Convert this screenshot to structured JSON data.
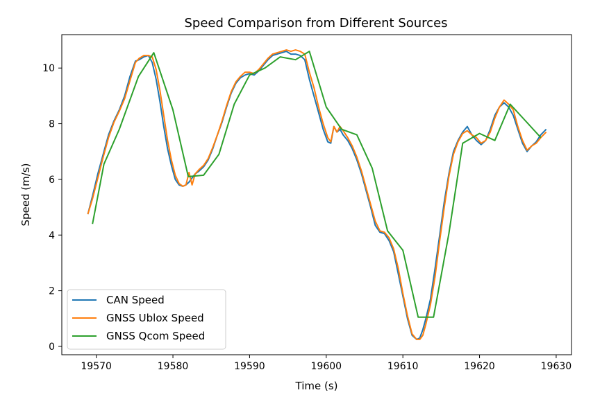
{
  "chart_data": {
    "type": "line",
    "title": "Speed Comparison from Different Sources",
    "xlabel": "Time (s)",
    "ylabel": "Speed (m/s)",
    "xlim": [
      19565.5,
      19632
    ],
    "ylim": [
      -0.3,
      11.2
    ],
    "x_ticks": [
      19570,
      19580,
      19590,
      19600,
      19610,
      19620,
      19630
    ],
    "y_ticks": [
      0,
      2,
      4,
      6,
      8,
      10
    ],
    "grid": false,
    "legend_position": "lower-left",
    "series": [
      {
        "name": "CAN Speed",
        "color": "#1f77b4",
        "x": [
          19568.9,
          19569.5,
          19570.2,
          19570.9,
          19571.6,
          19572.3,
          19573.0,
          19573.7,
          19574.4,
          19575.1,
          19575.6,
          19576.2,
          19576.8,
          19577.3,
          19577.8,
          19578.3,
          19578.8,
          19579.3,
          19579.8,
          19580.3,
          19580.8,
          19581.3,
          19581.7,
          19582.1,
          19582.5,
          19582.9,
          19583.4,
          19584.0,
          19584.6,
          19585.2,
          19585.8,
          19586.4,
          19587.0,
          19587.6,
          19588.2,
          19588.8,
          19589.4,
          19590.0,
          19590.6,
          19591.2,
          19591.8,
          19592.4,
          19593.0,
          19593.6,
          19594.2,
          19594.8,
          19595.4,
          19596.0,
          19596.6,
          19597.2,
          19597.8,
          19598.4,
          19599.0,
          19599.6,
          19600.2,
          19600.6,
          19601.0,
          19601.4,
          19601.8,
          19602.2,
          19602.8,
          19603.4,
          19604.0,
          19604.6,
          19605.2,
          19605.8,
          19606.4,
          19607.0,
          19607.6,
          19608.2,
          19608.8,
          19609.4,
          19610.0,
          19610.6,
          19611.2,
          19611.8,
          19612.2,
          19612.6,
          19613.0,
          19613.6,
          19614.2,
          19614.8,
          19615.4,
          19616.0,
          19616.6,
          19617.2,
          19617.8,
          19618.4,
          19619.0,
          19619.6,
          19620.2,
          19620.8,
          19621.4,
          19622.0,
          19622.6,
          19623.2,
          19623.8,
          19624.4,
          19625.0,
          19625.6,
          19626.2,
          19626.8,
          19627.4,
          19628.0,
          19628.7
        ],
        "y": [
          4.75,
          5.4,
          6.2,
          6.9,
          7.6,
          8.1,
          8.5,
          9.0,
          9.7,
          10.25,
          10.3,
          10.4,
          10.45,
          10.2,
          9.6,
          8.8,
          7.9,
          7.1,
          6.5,
          6.0,
          5.8,
          5.75,
          5.8,
          5.9,
          6.05,
          6.2,
          6.3,
          6.45,
          6.7,
          7.1,
          7.6,
          8.05,
          8.6,
          9.1,
          9.45,
          9.65,
          9.75,
          9.8,
          9.75,
          9.9,
          10.1,
          10.3,
          10.45,
          10.5,
          10.55,
          10.6,
          10.5,
          10.5,
          10.45,
          10.3,
          9.6,
          9.0,
          8.4,
          7.8,
          7.35,
          7.3,
          7.9,
          7.7,
          7.8,
          7.6,
          7.4,
          7.1,
          6.7,
          6.2,
          5.6,
          5.0,
          4.35,
          4.1,
          4.05,
          3.8,
          3.4,
          2.6,
          1.8,
          1.0,
          0.4,
          0.25,
          0.3,
          0.6,
          1.0,
          1.7,
          2.8,
          4.0,
          5.2,
          6.2,
          7.0,
          7.4,
          7.7,
          7.9,
          7.6,
          7.4,
          7.25,
          7.4,
          7.8,
          8.3,
          8.6,
          8.75,
          8.6,
          8.3,
          7.8,
          7.3,
          7.0,
          7.2,
          7.35,
          7.6,
          7.8
        ]
      },
      {
        "name": "GNSS Ublox Speed",
        "color": "#ff7f0e",
        "x": [
          19568.9,
          19569.5,
          19570.2,
          19570.9,
          19571.6,
          19572.3,
          19573.0,
          19573.7,
          19574.4,
          19575.1,
          19575.6,
          19576.2,
          19576.8,
          19577.3,
          19577.8,
          19578.3,
          19578.8,
          19579.3,
          19579.8,
          19580.3,
          19580.8,
          19581.3,
          19581.7,
          19582.1,
          19582.5,
          19582.9,
          19583.4,
          19584.0,
          19584.6,
          19585.2,
          19585.8,
          19586.4,
          19587.0,
          19587.6,
          19588.2,
          19588.8,
          19589.4,
          19590.0,
          19590.6,
          19591.2,
          19591.8,
          19592.4,
          19593.0,
          19593.6,
          19594.2,
          19594.8,
          19595.4,
          19596.0,
          19596.6,
          19597.2,
          19597.8,
          19598.4,
          19599.0,
          19599.6,
          19600.2,
          19600.6,
          19601.0,
          19601.4,
          19601.8,
          19602.2,
          19602.8,
          19603.4,
          19604.0,
          19604.6,
          19605.2,
          19605.8,
          19606.4,
          19607.0,
          19607.6,
          19608.2,
          19608.8,
          19609.4,
          19610.0,
          19610.6,
          19611.2,
          19611.8,
          19612.2,
          19612.6,
          19613.0,
          19613.6,
          19614.2,
          19614.8,
          19615.4,
          19616.0,
          19616.6,
          19617.2,
          19617.8,
          19618.4,
          19619.0,
          19619.6,
          19620.2,
          19620.8,
          19621.4,
          19622.0,
          19622.6,
          19623.2,
          19623.8,
          19624.4,
          19625.0,
          19625.6,
          19626.2,
          19626.8,
          19627.4,
          19628.0,
          19628.7
        ],
        "y": [
          4.75,
          5.3,
          6.05,
          6.8,
          7.5,
          8.05,
          8.45,
          8.9,
          9.55,
          10.2,
          10.35,
          10.45,
          10.45,
          10.4,
          9.95,
          9.2,
          8.3,
          7.4,
          6.7,
          6.15,
          5.85,
          5.75,
          5.8,
          6.25,
          5.8,
          6.2,
          6.35,
          6.5,
          6.75,
          7.15,
          7.6,
          8.1,
          8.65,
          9.15,
          9.5,
          9.7,
          9.85,
          9.85,
          9.8,
          9.95,
          10.15,
          10.35,
          10.5,
          10.55,
          10.6,
          10.65,
          10.6,
          10.65,
          10.6,
          10.5,
          9.85,
          9.3,
          8.6,
          8.0,
          7.5,
          7.35,
          7.9,
          7.7,
          7.9,
          7.75,
          7.5,
          7.2,
          6.8,
          6.3,
          5.7,
          5.1,
          4.5,
          4.15,
          4.1,
          3.9,
          3.5,
          2.8,
          1.9,
          1.1,
          0.45,
          0.25,
          0.25,
          0.4,
          0.8,
          1.5,
          2.5,
          3.8,
          5.0,
          6.1,
          6.9,
          7.35,
          7.65,
          7.75,
          7.6,
          7.5,
          7.3,
          7.4,
          7.7,
          8.2,
          8.6,
          8.85,
          8.7,
          8.5,
          7.9,
          7.4,
          7.05,
          7.2,
          7.3,
          7.5,
          7.7
        ]
      },
      {
        "name": "GNSS Qcom Speed",
        "color": "#2ca02c",
        "x": [
          19569.5,
          19571.0,
          19573.0,
          19575.5,
          19577.5,
          19580.0,
          19582.0,
          19584.0,
          19586.0,
          19588.0,
          19590.0,
          19592.0,
          19594.0,
          19596.0,
          19597.8,
          19600.0,
          19602.0,
          19604.0,
          19606.0,
          19608.0,
          19610.0,
          19612.0,
          19614.0,
          19616.0,
          19617.8,
          19620.0,
          19622.0,
          19624.0,
          19626.0,
          19628.0
        ],
        "y": [
          4.4,
          6.55,
          7.8,
          9.7,
          10.55,
          8.5,
          6.1,
          6.15,
          6.9,
          8.7,
          9.75,
          10.0,
          10.4,
          10.3,
          10.6,
          8.6,
          7.8,
          7.6,
          6.4,
          4.15,
          3.45,
          1.05,
          1.05,
          4.05,
          7.3,
          7.65,
          7.4,
          8.7,
          8.1,
          7.5
        ]
      }
    ]
  }
}
